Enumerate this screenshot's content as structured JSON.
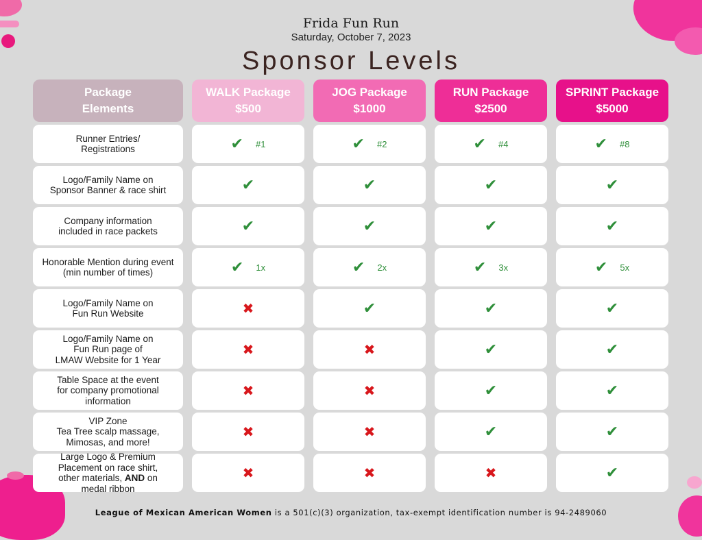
{
  "header": {
    "event_title": "Frida Fun Run",
    "event_date": "Saturday, October 7, 2023",
    "page_title": "Sponsor Levels"
  },
  "table": {
    "columns": [
      {
        "line1": "Package",
        "line2": "Elements",
        "color": "#c7b2bc"
      },
      {
        "line1": "WALK Package",
        "line2": "$500",
        "color": "#f2b5d5"
      },
      {
        "line1": "JOG Package",
        "line2": "$1000",
        "color": "#f26bb4"
      },
      {
        "line1": "RUN Package",
        "line2": "$2500",
        "color": "#ee2e97"
      },
      {
        "line1": "SPRINT Package",
        "line2": "$5000",
        "color": "#e7118a"
      }
    ],
    "rows": [
      {
        "label": "Runner Entries/\nRegistrations",
        "cells": [
          {
            "mark": "check",
            "note": "#1"
          },
          {
            "mark": "check",
            "note": "#2"
          },
          {
            "mark": "check",
            "note": "#4"
          },
          {
            "mark": "check",
            "note": "#8"
          }
        ]
      },
      {
        "label": "Logo/Family Name on\nSponsor Banner & race shirt",
        "cells": [
          {
            "mark": "check",
            "note": ""
          },
          {
            "mark": "check",
            "note": ""
          },
          {
            "mark": "check",
            "note": ""
          },
          {
            "mark": "check",
            "note": ""
          }
        ]
      },
      {
        "label": "Company information\nincluded in race packets",
        "cells": [
          {
            "mark": "check",
            "note": ""
          },
          {
            "mark": "check",
            "note": ""
          },
          {
            "mark": "check",
            "note": ""
          },
          {
            "mark": "check",
            "note": ""
          }
        ]
      },
      {
        "label": "Honorable Mention during event\n(min number of times)",
        "cells": [
          {
            "mark": "check",
            "note": "1x"
          },
          {
            "mark": "check",
            "note": "2x"
          },
          {
            "mark": "check",
            "note": "3x"
          },
          {
            "mark": "check",
            "note": "5x"
          }
        ]
      },
      {
        "label": "Logo/Family Name on\nFun Run Website",
        "cells": [
          {
            "mark": "cross",
            "note": ""
          },
          {
            "mark": "check",
            "note": ""
          },
          {
            "mark": "check",
            "note": ""
          },
          {
            "mark": "check",
            "note": ""
          }
        ]
      },
      {
        "label": "Logo/Family Name on\nFun Run page of\nLMAW Website for 1 Year",
        "cells": [
          {
            "mark": "cross",
            "note": ""
          },
          {
            "mark": "cross",
            "note": ""
          },
          {
            "mark": "check",
            "note": ""
          },
          {
            "mark": "check",
            "note": ""
          }
        ]
      },
      {
        "label": "Table Space at the event\nfor company promotional\ninformation",
        "cells": [
          {
            "mark": "cross",
            "note": ""
          },
          {
            "mark": "cross",
            "note": ""
          },
          {
            "mark": "check",
            "note": ""
          },
          {
            "mark": "check",
            "note": ""
          }
        ]
      },
      {
        "label": "VIP Zone\nTea Tree scalp massage,\nMimosas, and more!",
        "cells": [
          {
            "mark": "cross",
            "note": ""
          },
          {
            "mark": "cross",
            "note": ""
          },
          {
            "mark": "check",
            "note": ""
          },
          {
            "mark": "check",
            "note": ""
          }
        ]
      },
      {
        "label_parts": [
          "Large Logo & Premium\nPlacement on race shirt,\nother materials, ",
          "AND",
          " on\nmedal ribbon"
        ],
        "cells": [
          {
            "mark": "cross",
            "note": ""
          },
          {
            "mark": "cross",
            "note": ""
          },
          {
            "mark": "cross",
            "note": ""
          },
          {
            "mark": "check",
            "note": ""
          }
        ]
      }
    ]
  },
  "footer": {
    "org_name": "League of Mexican American Women",
    "text": " is a 501(c)(3) organization, tax-exempt identification number is 94-2489060"
  },
  "colors": {
    "check": "#2f8f3a",
    "cross": "#d8171c",
    "accent": "#e7118a"
  },
  "icons": {
    "check": "checkmark-icon",
    "cross": "x-mark-icon"
  }
}
